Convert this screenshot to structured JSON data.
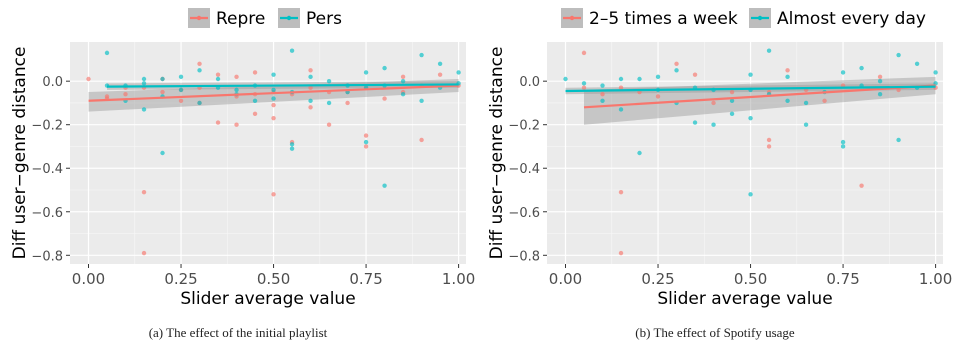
{
  "chart_data": [
    {
      "type": "scatter",
      "xlabel": "Slider average value",
      "ylabel": "Diff user−genre distance",
      "xlim": [
        -0.05,
        1.02
      ],
      "ylim": [
        -0.84,
        0.18
      ],
      "xticks": [
        0.0,
        0.25,
        0.5,
        0.75,
        1.0
      ],
      "xtick_labels": [
        "0.00",
        "0.25",
        "0.50",
        "0.75",
        "1.00"
      ],
      "yticks": [
        0.0,
        -0.2,
        -0.4,
        -0.6,
        -0.8
      ],
      "ytick_labels": [
        "0.0",
        "−0.2",
        "−0.4",
        "−0.6",
        "−0.8"
      ],
      "grid": true,
      "legend_position": "top",
      "caption": "(a) The effect of the initial playlist",
      "series": [
        {
          "name": "Repre",
          "color": "#F8766D",
          "points": [
            [
              0.0,
              0.01
            ],
            [
              0.05,
              -0.07
            ],
            [
              0.05,
              -0.08
            ],
            [
              0.1,
              -0.03
            ],
            [
              0.1,
              -0.06
            ],
            [
              0.15,
              -0.51
            ],
            [
              0.15,
              -0.79
            ],
            [
              0.15,
              -0.03
            ],
            [
              0.2,
              -0.05
            ],
            [
              0.2,
              0.01
            ],
            [
              0.25,
              -0.04
            ],
            [
              0.25,
              -0.09
            ],
            [
              0.3,
              0.08
            ],
            [
              0.3,
              -0.03
            ],
            [
              0.3,
              -0.1
            ],
            [
              0.35,
              0.03
            ],
            [
              0.35,
              -0.19
            ],
            [
              0.4,
              -0.07
            ],
            [
              0.4,
              -0.2
            ],
            [
              0.4,
              0.02
            ],
            [
              0.45,
              0.04
            ],
            [
              0.45,
              -0.15
            ],
            [
              0.45,
              -0.06
            ],
            [
              0.5,
              -0.05
            ],
            [
              0.5,
              -0.11
            ],
            [
              0.5,
              -0.17
            ],
            [
              0.5,
              -0.52
            ],
            [
              0.55,
              -0.28
            ],
            [
              0.55,
              -0.06
            ],
            [
              0.6,
              -0.03
            ],
            [
              0.6,
              -0.12
            ],
            [
              0.6,
              0.05
            ],
            [
              0.65,
              -0.05
            ],
            [
              0.65,
              -0.2
            ],
            [
              0.7,
              -0.05
            ],
            [
              0.7,
              -0.1
            ],
            [
              0.75,
              -0.25
            ],
            [
              0.75,
              -0.3
            ],
            [
              0.75,
              -0.03
            ],
            [
              0.8,
              -0.08
            ],
            [
              0.85,
              0.02
            ],
            [
              0.85,
              -0.05
            ],
            [
              0.9,
              -0.27
            ],
            [
              0.9,
              -0.02
            ],
            [
              0.95,
              0.03
            ],
            [
              1.0,
              -0.02
            ]
          ],
          "fit": {
            "x": [
              0.0,
              1.0
            ],
            "y": [
              -0.09,
              -0.02
            ],
            "ci_lower": [
              -0.14,
              -0.05
            ],
            "ci_upper": [
              -0.05,
              0.01
            ]
          }
        },
        {
          "name": "Pers",
          "color": "#00BFC4",
          "points": [
            [
              0.05,
              0.13
            ],
            [
              0.05,
              -0.02
            ],
            [
              0.1,
              -0.02
            ],
            [
              0.1,
              -0.09
            ],
            [
              0.15,
              -0.13
            ],
            [
              0.15,
              -0.01
            ],
            [
              0.15,
              0.01
            ],
            [
              0.2,
              -0.33
            ],
            [
              0.2,
              0.01
            ],
            [
              0.2,
              -0.07
            ],
            [
              0.25,
              -0.04
            ],
            [
              0.25,
              0.02
            ],
            [
              0.3,
              0.05
            ],
            [
              0.3,
              -0.1
            ],
            [
              0.35,
              -0.03
            ],
            [
              0.35,
              0.01
            ],
            [
              0.4,
              -0.04
            ],
            [
              0.4,
              -0.06
            ],
            [
              0.45,
              -0.02
            ],
            [
              0.45,
              -0.09
            ],
            [
              0.5,
              0.03
            ],
            [
              0.5,
              -0.04
            ],
            [
              0.5,
              -0.08
            ],
            [
              0.55,
              0.14
            ],
            [
              0.55,
              -0.29
            ],
            [
              0.55,
              -0.31
            ],
            [
              0.55,
              -0.05
            ],
            [
              0.6,
              -0.09
            ],
            [
              0.6,
              0.02
            ],
            [
              0.65,
              -0.1
            ],
            [
              0.65,
              0.0
            ],
            [
              0.7,
              -0.02
            ],
            [
              0.7,
              -0.05
            ],
            [
              0.75,
              0.04
            ],
            [
              0.75,
              -0.03
            ],
            [
              0.75,
              -0.28
            ],
            [
              0.8,
              -0.48
            ],
            [
              0.8,
              -0.02
            ],
            [
              0.8,
              0.06
            ],
            [
              0.85,
              0.0
            ],
            [
              0.85,
              -0.06
            ],
            [
              0.9,
              0.12
            ],
            [
              0.9,
              -0.09
            ],
            [
              0.95,
              0.08
            ],
            [
              0.95,
              -0.03
            ],
            [
              1.0,
              0.04
            ],
            [
              1.0,
              -0.01
            ]
          ],
          "fit": {
            "x": [
              0.05,
              1.0
            ],
            "y": [
              -0.025,
              -0.015
            ],
            "ci_lower": [
              -0.04,
              -0.03
            ],
            "ci_upper": [
              -0.01,
              0.0
            ]
          }
        }
      ]
    },
    {
      "type": "scatter",
      "xlabel": "Slider average value",
      "ylabel": "Diff user−genre distance",
      "xlim": [
        -0.05,
        1.02
      ],
      "ylim": [
        -0.84,
        0.18
      ],
      "xticks": [
        0.0,
        0.25,
        0.5,
        0.75,
        1.0
      ],
      "xtick_labels": [
        "0.00",
        "0.25",
        "0.50",
        "0.75",
        "1.00"
      ],
      "yticks": [
        0.0,
        -0.2,
        -0.4,
        -0.6,
        -0.8
      ],
      "ytick_labels": [
        "0.0",
        "−0.2",
        "−0.4",
        "−0.6",
        "−0.8"
      ],
      "grid": true,
      "legend_position": "top",
      "caption": "(b) The effect of Spotify usage",
      "series": [
        {
          "name": "2–5 times a week",
          "color": "#F8766D",
          "points": [
            [
              0.05,
              0.13
            ],
            [
              0.05,
              -0.03
            ],
            [
              0.1,
              -0.06
            ],
            [
              0.15,
              -0.51
            ],
            [
              0.15,
              -0.79
            ],
            [
              0.15,
              -0.03
            ],
            [
              0.2,
              -0.05
            ],
            [
              0.25,
              -0.07
            ],
            [
              0.3,
              0.08
            ],
            [
              0.35,
              0.03
            ],
            [
              0.4,
              -0.1
            ],
            [
              0.45,
              -0.05
            ],
            [
              0.55,
              -0.27
            ],
            [
              0.55,
              -0.3
            ],
            [
              0.55,
              -0.05
            ],
            [
              0.6,
              0.05
            ],
            [
              0.65,
              -0.04
            ],
            [
              0.7,
              -0.09
            ],
            [
              0.75,
              -0.02
            ],
            [
              0.8,
              -0.48
            ],
            [
              0.85,
              0.02
            ],
            [
              0.9,
              -0.04
            ],
            [
              1.0,
              -0.03
            ]
          ],
          "fit": {
            "x": [
              0.05,
              1.0
            ],
            "y": [
              -0.12,
              -0.02
            ],
            "ci_lower": [
              -0.2,
              -0.06
            ],
            "ci_upper": [
              -0.04,
              0.02
            ]
          }
        },
        {
          "name": "Almost every day",
          "color": "#00BFC4",
          "points": [
            [
              0.0,
              0.01
            ],
            [
              0.05,
              -0.01
            ],
            [
              0.1,
              -0.02
            ],
            [
              0.1,
              -0.09
            ],
            [
              0.15,
              -0.13
            ],
            [
              0.15,
              0.01
            ],
            [
              0.2,
              -0.33
            ],
            [
              0.2,
              0.01
            ],
            [
              0.25,
              -0.04
            ],
            [
              0.25,
              0.02
            ],
            [
              0.3,
              0.05
            ],
            [
              0.3,
              -0.1
            ],
            [
              0.35,
              -0.03
            ],
            [
              0.35,
              -0.19
            ],
            [
              0.4,
              -0.04
            ],
            [
              0.4,
              -0.2
            ],
            [
              0.45,
              -0.09
            ],
            [
              0.45,
              -0.15
            ],
            [
              0.5,
              0.03
            ],
            [
              0.5,
              -0.52
            ],
            [
              0.5,
              -0.17
            ],
            [
              0.5,
              -0.04
            ],
            [
              0.55,
              0.14
            ],
            [
              0.55,
              -0.06
            ],
            [
              0.6,
              -0.09
            ],
            [
              0.6,
              0.02
            ],
            [
              0.65,
              -0.1
            ],
            [
              0.65,
              -0.2
            ],
            [
              0.7,
              -0.05
            ],
            [
              0.75,
              0.04
            ],
            [
              0.75,
              -0.28
            ],
            [
              0.75,
              -0.3
            ],
            [
              0.8,
              0.06
            ],
            [
              0.8,
              -0.02
            ],
            [
              0.85,
              0.0
            ],
            [
              0.85,
              -0.06
            ],
            [
              0.9,
              0.12
            ],
            [
              0.9,
              -0.27
            ],
            [
              0.95,
              0.08
            ],
            [
              0.95,
              -0.03
            ],
            [
              1.0,
              0.04
            ],
            [
              1.0,
              -0.01
            ]
          ],
          "fit": {
            "x": [
              0.0,
              1.0
            ],
            "y": [
              -0.045,
              -0.025
            ],
            "ci_lower": [
              -0.06,
              -0.04
            ],
            "ci_upper": [
              -0.03,
              -0.01
            ]
          }
        }
      ]
    }
  ]
}
